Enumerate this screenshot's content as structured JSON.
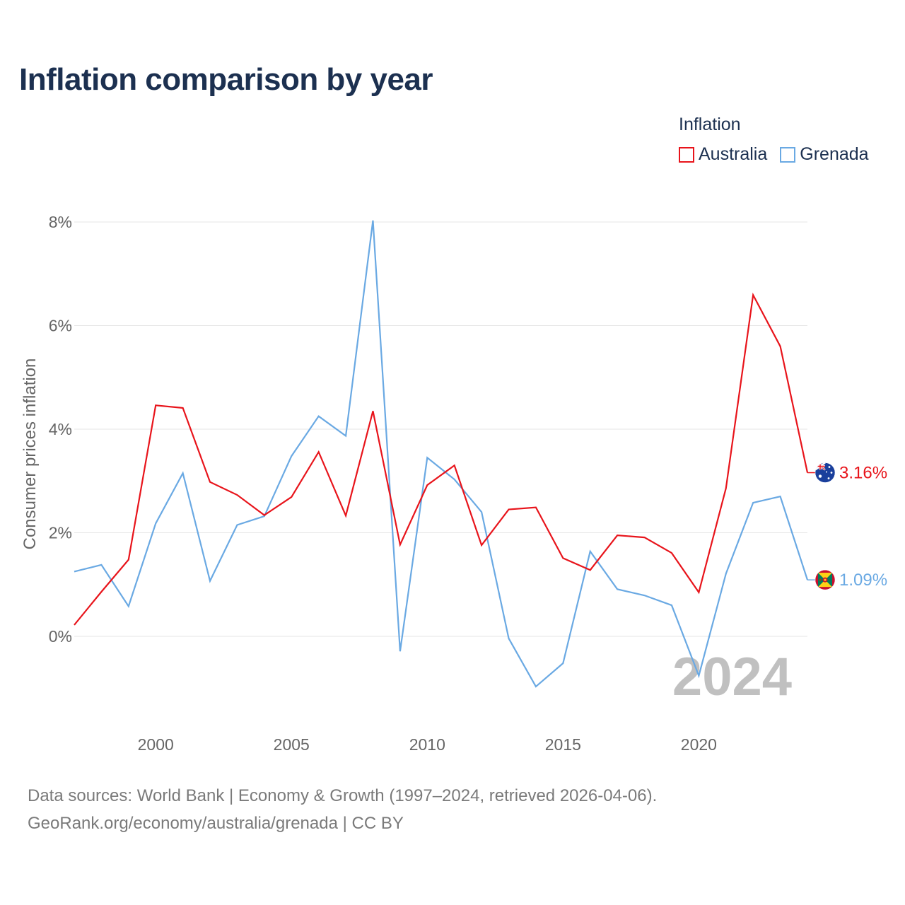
{
  "title": "Inflation comparison by year",
  "legend": {
    "title": "Inflation",
    "items": [
      {
        "label": "Australia",
        "color": "#e8141b"
      },
      {
        "label": "Grenada",
        "color": "#6aa9e3"
      }
    ]
  },
  "source": {
    "line1": "Data sources: World Bank | Economy & Growth (1997–2024, retrieved 2026-04-06).",
    "line2": "GeoRank.org/economy/australia/grenada | CC BY"
  },
  "chart_data": {
    "type": "line",
    "title": "Inflation comparison by year",
    "xlabel": "",
    "ylabel": "Consumer prices inflation",
    "xlim": [
      1997,
      2024
    ],
    "ylim": [
      -1.5,
      8
    ],
    "x_ticks": [
      2000,
      2005,
      2010,
      2015,
      2020
    ],
    "y_ticks": [
      0,
      2,
      4,
      6,
      8
    ],
    "y_tick_labels": [
      "0%",
      "2%",
      "4%",
      "6%",
      "8%"
    ],
    "grid": true,
    "watermark_year": "2024",
    "x": [
      1997,
      1998,
      1999,
      2000,
      2001,
      2002,
      2003,
      2004,
      2005,
      2006,
      2007,
      2008,
      2009,
      2010,
      2011,
      2012,
      2013,
      2014,
      2015,
      2016,
      2017,
      2018,
      2019,
      2020,
      2021,
      2022,
      2023,
      2024
    ],
    "series": [
      {
        "name": "Grenada",
        "color": "#6aa9e3",
        "end_label": "1.09%",
        "flag": "grenada-flag",
        "values": [
          1.25,
          1.38,
          0.58,
          2.18,
          3.15,
          1.07,
          2.15,
          2.32,
          3.48,
          4.25,
          3.87,
          8.03,
          -0.29,
          3.45,
          3.03,
          2.4,
          -0.04,
          -0.97,
          -0.52,
          1.64,
          0.91,
          0.79,
          0.6,
          -0.76,
          1.21,
          2.58,
          2.7,
          1.09
        ]
      },
      {
        "name": "Australia",
        "color": "#e8141b",
        "end_label": "3.16%",
        "flag": "australia-flag",
        "values": [
          0.22,
          0.86,
          1.48,
          4.46,
          4.41,
          2.98,
          2.73,
          2.34,
          2.69,
          3.56,
          2.33,
          4.35,
          1.77,
          2.92,
          3.3,
          1.76,
          2.45,
          2.49,
          1.51,
          1.28,
          1.95,
          1.91,
          1.61,
          0.85,
          2.86,
          6.59,
          5.6,
          3.16
        ]
      }
    ]
  }
}
